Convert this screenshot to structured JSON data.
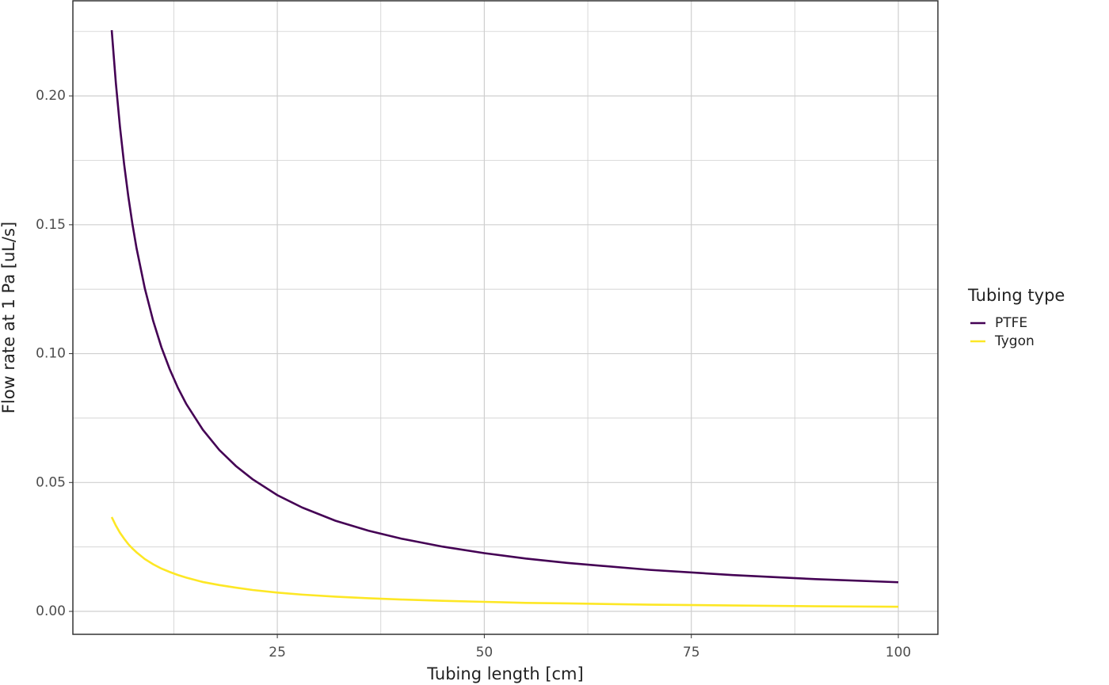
{
  "chart_data": {
    "type": "line",
    "x_label": "Tubing length [cm]",
    "y_label": "Flow rate at 1 Pa [uL/s]",
    "legend_title": "Tubing type",
    "legend_position": "right",
    "grid": true,
    "x": [
      5,
      5.5,
      6,
      6.5,
      7,
      7.5,
      8,
      9,
      10,
      11,
      12,
      13,
      14,
      16,
      18,
      20,
      22,
      25,
      28,
      32,
      36,
      40,
      45,
      50,
      55,
      60,
      70,
      80,
      90,
      100
    ],
    "series": [
      {
        "name": "PTFE",
        "color": "#440154",
        "values": [
          0.2255,
          0.205,
          0.1879,
          0.1735,
          0.1611,
          0.1503,
          0.1409,
          0.1253,
          0.1128,
          0.1025,
          0.094,
          0.0867,
          0.0805,
          0.0705,
          0.0626,
          0.0564,
          0.0513,
          0.0451,
          0.0403,
          0.0352,
          0.0313,
          0.0282,
          0.0251,
          0.0226,
          0.0205,
          0.0188,
          0.0161,
          0.0141,
          0.0125,
          0.0113
        ]
      },
      {
        "name": "Tygon",
        "color": "#FDE725",
        "values": [
          0.0366,
          0.0333,
          0.0305,
          0.0282,
          0.0261,
          0.0244,
          0.0229,
          0.0203,
          0.0183,
          0.0166,
          0.0153,
          0.0141,
          0.0131,
          0.0114,
          0.0102,
          0.0092,
          0.0083,
          0.0073,
          0.0065,
          0.0057,
          0.0051,
          0.0046,
          0.0041,
          0.0037,
          0.0033,
          0.0031,
          0.0026,
          0.0023,
          0.002,
          0.0018
        ]
      }
    ],
    "xlim": [
      0.31,
      104.78
    ],
    "ylim": [
      -0.0089,
      0.2369
    ],
    "xticks": [
      25,
      50,
      75,
      100
    ],
    "yticks": [
      {
        "value": 0,
        "label": "0.00"
      },
      0.05,
      {
        "value": 0.1,
        "label": "0.10"
      },
      0.15,
      {
        "value": 0.2,
        "label": "0.20"
      }
    ],
    "x_minor_grid": [
      12.5,
      37.5,
      62.5,
      87.5
    ],
    "y_minor_grid": [
      0.025,
      0.075,
      0.125,
      0.175,
      0.225
    ]
  }
}
